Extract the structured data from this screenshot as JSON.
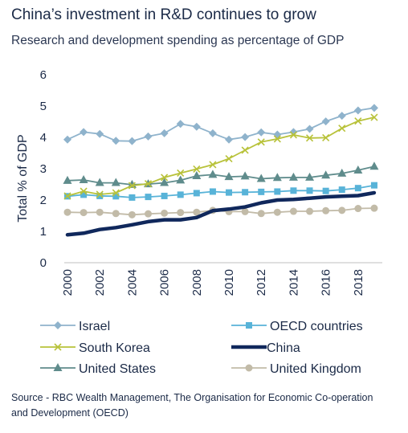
{
  "header": {
    "title": "China’s investment in R&D continues to grow",
    "subtitle": "Research and development spending as percentage of GDP"
  },
  "footer": {
    "source": "Source - RBC Wealth Management, The Organisation for Economic Co-operation and Development (OECD)"
  },
  "chart_data": {
    "type": "line",
    "title": "China’s investment in R&D continues to grow",
    "subtitle": "Research and development spending as percentage of GDP",
    "xlabel": "",
    "ylabel": "Total % of GDP",
    "ylim": [
      0,
      6
    ],
    "yticks": [
      0,
      1,
      2,
      3,
      4,
      5,
      6
    ],
    "xticks": [
      2000,
      2002,
      2004,
      2006,
      2008,
      2010,
      2012,
      2014,
      2016,
      2018
    ],
    "x": [
      2000,
      2001,
      2002,
      2003,
      2004,
      2005,
      2006,
      2007,
      2008,
      2009,
      2010,
      2011,
      2012,
      2013,
      2014,
      2015,
      2016,
      2017,
      2018,
      2019
    ],
    "grid": false,
    "legend_position": "bottom",
    "series": [
      {
        "name": "Israel",
        "color": "#8fb3cc",
        "marker": "diamond",
        "values": [
          3.93,
          4.17,
          4.11,
          3.89,
          3.88,
          4.03,
          4.13,
          4.43,
          4.34,
          4.13,
          3.93,
          4.01,
          4.16,
          4.09,
          4.17,
          4.27,
          4.51,
          4.69,
          4.86,
          4.94
        ]
      },
      {
        "name": "OECD countries",
        "color": "#58b3d8",
        "marker": "square",
        "values": [
          2.12,
          2.17,
          2.13,
          2.12,
          2.08,
          2.1,
          2.13,
          2.17,
          2.22,
          2.27,
          2.24,
          2.25,
          2.26,
          2.27,
          2.3,
          2.3,
          2.29,
          2.33,
          2.38,
          2.47
        ]
      },
      {
        "name": "South Korea",
        "color": "#b8c23a",
        "marker": "x",
        "values": [
          2.13,
          2.28,
          2.18,
          2.23,
          2.46,
          2.52,
          2.72,
          2.86,
          2.99,
          3.13,
          3.32,
          3.59,
          3.85,
          3.95,
          4.08,
          3.98,
          3.99,
          4.29,
          4.52,
          4.64
        ]
      },
      {
        "name": "China",
        "color": "#10285c",
        "marker": "none",
        "values": [
          0.89,
          0.94,
          1.06,
          1.12,
          1.21,
          1.31,
          1.37,
          1.37,
          1.44,
          1.66,
          1.71,
          1.78,
          1.91,
          2.0,
          2.02,
          2.06,
          2.1,
          2.12,
          2.14,
          2.23
        ]
      },
      {
        "name": "United States",
        "color": "#5f8c8c",
        "marker": "triangle",
        "values": [
          2.62,
          2.64,
          2.55,
          2.55,
          2.49,
          2.51,
          2.55,
          2.63,
          2.77,
          2.81,
          2.74,
          2.76,
          2.68,
          2.71,
          2.72,
          2.72,
          2.79,
          2.85,
          2.95,
          3.07
        ]
      },
      {
        "name": "United Kingdom",
        "color": "#c2bba8",
        "marker": "circle",
        "values": [
          1.61,
          1.6,
          1.61,
          1.57,
          1.53,
          1.56,
          1.58,
          1.6,
          1.61,
          1.67,
          1.63,
          1.63,
          1.57,
          1.61,
          1.64,
          1.64,
          1.66,
          1.67,
          1.73,
          1.74
        ]
      }
    ],
    "legend_layout": [
      [
        "Israel",
        "OECD countries"
      ],
      [
        "South Korea",
        "China"
      ],
      [
        "United States",
        "United Kingdom"
      ]
    ]
  }
}
